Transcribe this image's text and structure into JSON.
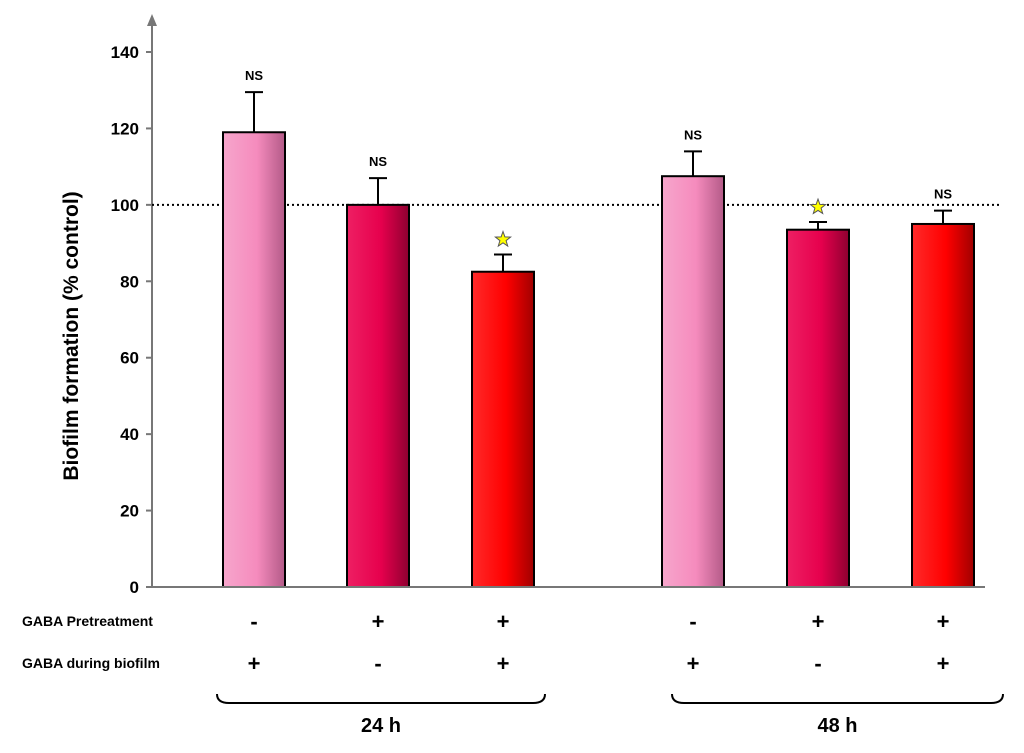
{
  "chart_data": {
    "type": "bar",
    "title": "",
    "xlabel": "",
    "ylabel": "Biofilm formation (% control)",
    "ylim": [
      0,
      140
    ],
    "yticks": [
      0,
      20,
      40,
      60,
      80,
      100,
      120,
      140
    ],
    "reference_line": 100,
    "grid": false,
    "bars": [
      {
        "value": 119,
        "error": 10.5,
        "significance": "NS",
        "color": "#f58bbd"
      },
      {
        "value": 100,
        "error": 7,
        "significance": "NS",
        "color": "#e6004d"
      },
      {
        "value": 82.5,
        "error": 4.5,
        "significance": "star",
        "color": "#ff0000"
      },
      {
        "value": 107.5,
        "error": 6.5,
        "significance": "NS",
        "color": "#f58bbd"
      },
      {
        "value": 93.5,
        "error": 2,
        "significance": "star",
        "color": "#e6004d"
      },
      {
        "value": 95,
        "error": 3.5,
        "significance": "NS",
        "color": "#ff0000"
      }
    ],
    "ns_label": "NS",
    "star_color": "#ffff00",
    "conditions": [
      {
        "label": "GABA Pretreatment",
        "signs": [
          "-",
          "+",
          "+",
          "-",
          "+",
          "+"
        ]
      },
      {
        "label": "GABA during biofilm",
        "signs": [
          "+",
          "-",
          "+",
          "+",
          "-",
          "+"
        ]
      }
    ],
    "groups": [
      {
        "label": "24 h",
        "bars": [
          0,
          1,
          2
        ]
      },
      {
        "label": "48 h",
        "bars": [
          3,
          4,
          5
        ]
      }
    ]
  }
}
